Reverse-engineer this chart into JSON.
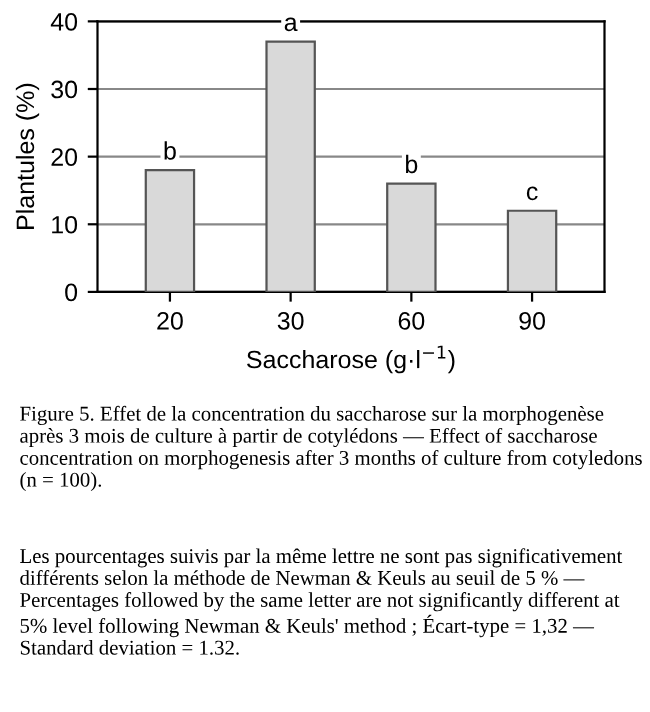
{
  "chart_data": {
    "type": "bar",
    "categories": [
      "20",
      "30",
      "60",
      "90"
    ],
    "values": [
      18,
      37,
      16,
      12
    ],
    "color": "#d9d9d9",
    "ylim": [
      0,
      40
    ],
    "yticks": [
      0,
      10,
      20,
      30,
      40
    ],
    "grid": "y",
    "xlabel": "Saccharose (g·l$^{−1}$)",
    "ylabel": "Plantules (%)",
    "annotations": [
      {
        "text": "b",
        "x": "20",
        "y": 18
      },
      {
        "text": "a",
        "x": "30",
        "y": 37
      },
      {
        "text": "b",
        "x": "60",
        "y": 16
      },
      {
        "text": "c",
        "x": "90",
        "y": 12
      },
      "Figure 5. Effet de la concentration du saccharose sur la morphogenèse après 3 mois de culture à partir de cotylédons — Effect of saccharose concentration on morphogenesis after 3 months of culture from cotyledons (n = 100).",
      "Les pourcentages suivis par la même lettre ne sont pas significativement différents selon la méthode de Newman & Keuls au seuil de 5 % — Percentages followed by the same letter are not significantly different at 5% level following Newman & Keuls' method ; Écart-type = 1,32 — Standard deviation = 1.32."
    ]
  }
}
